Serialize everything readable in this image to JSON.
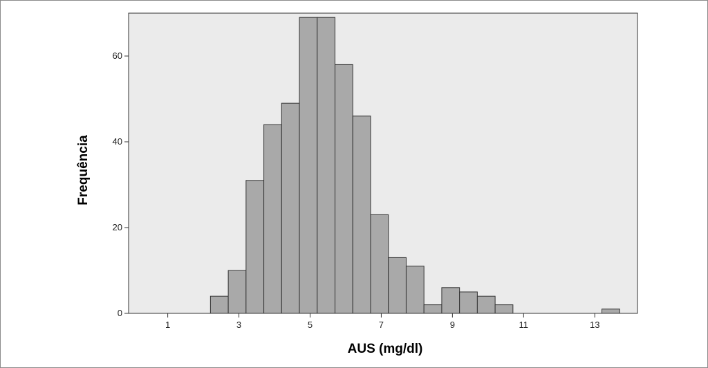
{
  "chart_data": {
    "type": "bar",
    "title": "",
    "xlabel": "AUS (mg/dl)",
    "ylabel": "Frequência",
    "bin_width": 0.5,
    "bin_starts": [
      2.2,
      2.7,
      3.2,
      3.7,
      4.2,
      4.7,
      5.2,
      5.7,
      6.2,
      6.7,
      7.2,
      7.7,
      8.2,
      8.7,
      9.2,
      9.7,
      10.2,
      13.2
    ],
    "values": [
      4,
      10,
      31,
      44,
      49,
      69,
      69,
      58,
      46,
      23,
      13,
      11,
      2,
      6,
      5,
      4,
      2,
      1
    ],
    "xlim": [
      -0.1,
      14.2
    ],
    "ylim": [
      0,
      70
    ],
    "x_ticks": [
      1,
      3,
      5,
      7,
      9,
      11,
      13
    ],
    "x_tick_labels": [
      "1",
      "3",
      "5",
      "7",
      "9",
      "11",
      "13"
    ],
    "y_ticks": [
      0,
      20,
      40,
      60
    ],
    "y_tick_labels": [
      "0",
      "20",
      "40",
      "60"
    ],
    "grid": false,
    "colors": {
      "plot_background": "#ebebeb",
      "bar_fill": "#a9a9a9",
      "bar_stroke": "#333333",
      "frame_border": "#8a8a8a"
    }
  }
}
